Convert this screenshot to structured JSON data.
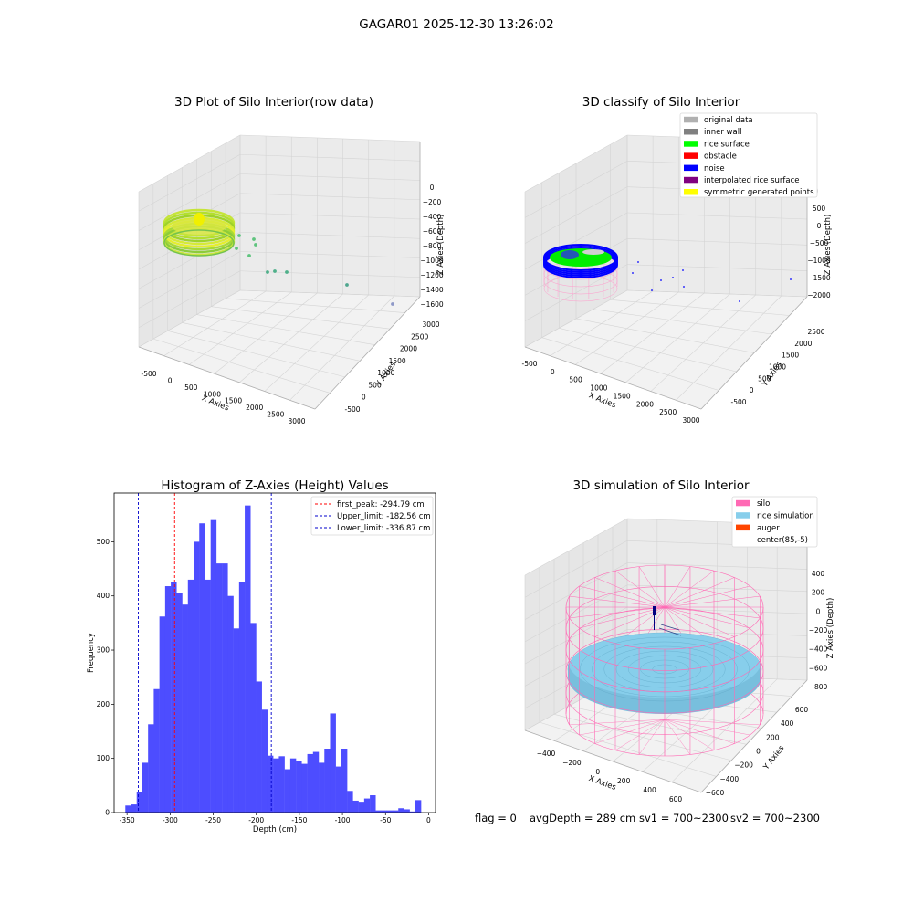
{
  "suptitle": "GAGAR01 2025-12-30 13:26:02",
  "info_line": {
    "flag": "flag = 0",
    "avg_depth": "avgDepth = 289 cm",
    "sv1": "sv1 = 700~2300",
    "sv2": "sv2 = 700~2300"
  },
  "colors": {
    "pane": "#f2f2f2",
    "grid": "#d4d4d4",
    "hist_bar": "#4d4dff",
    "first_peak": "#ff0000",
    "limit": "#0000cc",
    "silo": "#ff69b4",
    "rice_sim": "#87ceeb",
    "auger": "#ff4500"
  },
  "chart_data": [
    {
      "type": "scatter3d",
      "title": "3D Plot of Silo Interior(row data)",
      "xlabel": "X Axies",
      "ylabel": "Y Axies",
      "zlabel": "Z Axies (Depth)",
      "xticks": [
        "-500",
        "0",
        "500",
        "1000",
        "1500",
        "2000",
        "2500",
        "3000"
      ],
      "yticks": [
        "-500",
        "0",
        "500",
        "1000",
        "1500",
        "2000",
        "2500",
        "3000"
      ],
      "zticks": [
        "0",
        "−200",
        "−400",
        "−600",
        "−800",
        "−1000",
        "−1200",
        "−1400",
        "−1600"
      ],
      "outliers": [
        {
          "x": 700,
          "y": 200,
          "z": -700
        },
        {
          "x": 850,
          "y": 400,
          "z": -800
        },
        {
          "x": 1000,
          "y": 300,
          "z": -900
        },
        {
          "x": 1200,
          "y": 600,
          "z": -1000
        },
        {
          "x": 1400,
          "y": 700,
          "z": -1050
        },
        {
          "x": 1600,
          "y": 800,
          "z": -1100
        },
        {
          "x": 2200,
          "y": 1500,
          "z": -1300
        },
        {
          "x": 2900,
          "y": 2700,
          "z": -1600
        }
      ]
    },
    {
      "type": "scatter3d",
      "title": "3D classify of Silo Interior",
      "xlabel": "X Axies",
      "ylabel": "Y Axies",
      "zlabel": "Z Axies (Depth)",
      "xticks": [
        "-500",
        "0",
        "500",
        "1000",
        "1500",
        "2000",
        "2500",
        "3000"
      ],
      "yticks": [
        "-500",
        "0",
        "500",
        "1000",
        "1500",
        "2000",
        "2500"
      ],
      "zticks": [
        "500",
        "0",
        "−500",
        "−1000",
        "−1500",
        "−2000"
      ],
      "zticks_hidden_top": "00",
      "legend": [
        {
          "label": "original data",
          "color": "#b0b0b0"
        },
        {
          "label": "inner wall",
          "color": "#808080"
        },
        {
          "label": "rice surface",
          "color": "#00ff00"
        },
        {
          "label": "obstacle",
          "color": "#ff0000"
        },
        {
          "label": "noise",
          "color": "#0000ff"
        },
        {
          "label": "interpolated rice surface",
          "color": "#800080"
        },
        {
          "label": "symmetric generated points",
          "color": "#ffff00"
        }
      ]
    },
    {
      "type": "bar",
      "title": "Histogram of Z-Axies (Height) Values",
      "xlabel": "Depth (cm)",
      "ylabel": "Frequency",
      "xlim": [
        -365,
        8
      ],
      "ylim": [
        0,
        590
      ],
      "xticks": [
        -350,
        -300,
        -250,
        -200,
        -150,
        -100,
        -50,
        0
      ],
      "yticks": [
        0,
        100,
        200,
        300,
        400,
        500
      ],
      "bin_width": 6.6,
      "bin_start": -352,
      "counts": [
        13,
        15,
        38,
        92,
        163,
        228,
        362,
        418,
        426,
        405,
        384,
        430,
        500,
        534,
        430,
        540,
        460,
        460,
        400,
        340,
        425,
        567,
        350,
        242,
        190,
        105,
        100,
        104,
        80,
        100,
        95,
        90,
        108,
        112,
        92,
        118,
        183,
        85,
        118,
        40,
        22,
        20,
        26,
        32,
        4,
        4,
        4,
        4,
        8,
        6,
        2,
        23
      ],
      "vlines": [
        {
          "x": -294.79,
          "label": "first_peak: -294.79 cm",
          "color": "#ff0000"
        },
        {
          "x": -182.56,
          "label": "Upper_limit: -182.56 cm",
          "color": "#0000cc"
        },
        {
          "x": -336.87,
          "label": "Lower_limit: -336.87 cm",
          "color": "#0000cc"
        }
      ]
    },
    {
      "type": "surface3d",
      "title": "3D simulation of Silo Interior",
      "xlabel": "X Axies",
      "ylabel": "Y Axies",
      "zlabel": "Z Axies (Depth)",
      "xticks": [
        "−400",
        "−200",
        "0",
        "200",
        "400",
        "600"
      ],
      "yticks": [
        "600",
        "400",
        "200",
        "0",
        "−200",
        "−400",
        "−600"
      ],
      "zticks": [
        "400",
        "200",
        "0",
        "−200",
        "−400",
        "−600",
        "−800"
      ],
      "legend": [
        {
          "label": "silo",
          "color": "#ff69b4"
        },
        {
          "label": "rice simulation",
          "color": "#87ceeb"
        },
        {
          "label": "auger",
          "color": "#ff4500"
        },
        {
          "label": "center(85,-5)",
          "color": "none"
        }
      ]
    }
  ]
}
